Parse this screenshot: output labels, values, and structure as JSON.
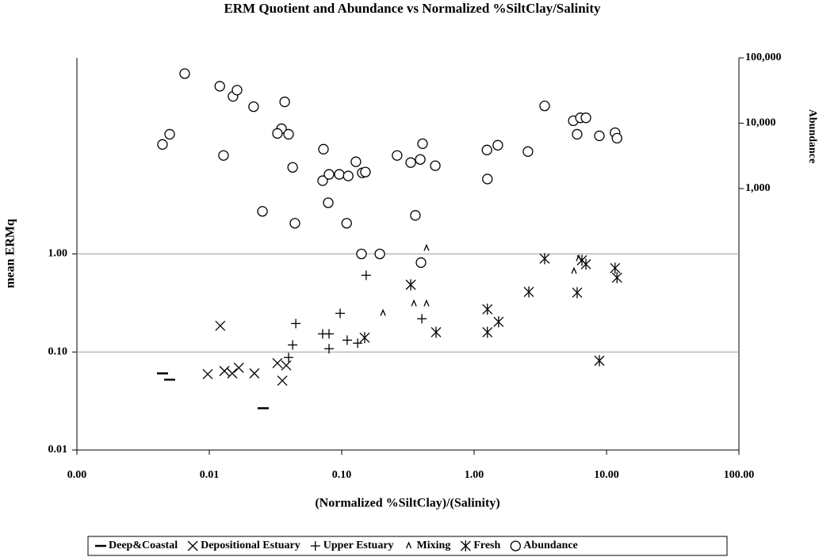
{
  "chart_data": {
    "type": "scatter",
    "title": "ERM Quotient and Abundance vs Normalized %SiltClay/Salinity",
    "x_label": "(Normalized %SiltClay)/(Salinity)",
    "y_label": "mean ERMq",
    "y2_label": "Abundance",
    "log_x": true,
    "log_y": true,
    "log_y2": true,
    "grid": true,
    "legend": "bottom",
    "xlim": [
      0.001,
      100
    ],
    "xticks": [
      {
        "value": 0.001,
        "label": "0.00"
      },
      0.01,
      {
        "value": 0.1,
        "label": "0.10"
      },
      {
        "value": 1,
        "label": "1.00"
      },
      {
        "value": 10,
        "label": "10.00"
      },
      {
        "value": 100,
        "label": "100.00"
      }
    ],
    "ylim": [
      0.01,
      100
    ],
    "yticks": [
      0.01,
      {
        "value": 0.1,
        "label": "0.10"
      },
      {
        "value": 1,
        "label": "1.00"
      }
    ],
    "y2lim": [
      0.1,
      100000
    ],
    "y2ticks": [
      {
        "value": 1000,
        "label": "1,000"
      },
      {
        "value": 10000,
        "label": "10,000"
      },
      {
        "value": 100000,
        "label": "100,000"
      }
    ],
    "series": [
      {
        "name": "Deep&Coastal",
        "marker": "dash",
        "color": "#000000",
        "axis": "y",
        "x": [
          0.00443,
          0.00502,
          0.0255
        ],
        "y": [
          0.0605,
          0.0522,
          0.0267
        ]
      },
      {
        "name": "Depositional Estuary",
        "marker": "x",
        "color": "#000000",
        "axis": "y",
        "x": [
          0.0121,
          0.00973,
          0.013,
          0.0149,
          0.0167,
          0.0219,
          0.0327,
          0.0356,
          0.0381
        ],
        "y": [
          0.185,
          0.0595,
          0.064,
          0.0605,
          0.069,
          0.0605,
          0.077,
          0.051,
          0.073
        ]
      },
      {
        "name": "Upper Estuary",
        "marker": "plus",
        "color": "#000000",
        "axis": "y",
        "x": [
          0.0397,
          0.0426,
          0.045,
          0.0718,
          0.0802,
          0.0802,
          0.0973,
          0.11,
          0.132,
          0.153,
          0.403
        ],
        "y": [
          0.0879,
          0.118,
          0.195,
          0.153,
          0.153,
          0.108,
          0.248,
          0.132,
          0.123,
          0.606,
          0.218
        ]
      },
      {
        "name": "Mixing",
        "marker": "caret",
        "color": "#000000",
        "axis": "y",
        "x": [
          0.205,
          0.351,
          0.437,
          0.437,
          5.68,
          6.17
        ],
        "y": [
          0.248,
          0.31,
          0.31,
          1.14,
          0.665,
          0.895
        ]
      },
      {
        "name": "Fresh",
        "marker": "star",
        "color": "#000000",
        "axis": "y",
        "x": [
          0.149,
          0.332,
          1.26,
          1.26,
          1.53,
          0.516,
          2.59,
          3.41,
          6.0,
          6.99,
          6.52,
          11.6,
          12.0,
          8.83
        ],
        "y": [
          0.14,
          0.485,
          0.273,
          0.159,
          0.203,
          0.159,
          0.41,
          0.895,
          0.403,
          0.786,
          0.862,
          0.716,
          0.573,
          0.0815
        ]
      },
      {
        "name": "Abundance",
        "marker": "circle",
        "color": "#000000",
        "axis": "y2",
        "x": [
          0.00652,
          0.012,
          0.0151,
          0.0162,
          0.0216,
          0.0371,
          0.00443,
          0.00502,
          0.0128,
          0.0351,
          0.0327,
          0.0397,
          0.0426,
          0.0252,
          0.0443,
          0.0728,
          0.0718,
          0.0802,
          0.0791,
          0.0959,
          0.112,
          0.128,
          0.143,
          0.151,
          0.109,
          0.262,
          0.332,
          0.392,
          0.408,
          0.509,
          0.36,
          0.141,
          0.194,
          0.397,
          1.25,
          1.51,
          1.26,
          2.55,
          3.41,
          5.61,
          6.35,
          6.99,
          6.0,
          8.83,
          11.6,
          12.0
        ],
        "y": [
          57400,
          36800,
          25700,
          32100,
          17900,
          21200,
          4730,
          6780,
          3210,
          8240,
          6970,
          6780,
          2110,
          448,
          295,
          4000,
          1320,
          1650,
          607,
          1650,
          1560,
          2570,
          1740,
          1790,
          295,
          3210,
          2500,
          2790,
          4860,
          2240,
          389,
          100,
          100,
          73.7,
          3890,
          4600,
          1400,
          3680,
          18400,
          10900,
          12100,
          12100,
          6780,
          6410,
          7160,
          5900
        ]
      }
    ]
  }
}
